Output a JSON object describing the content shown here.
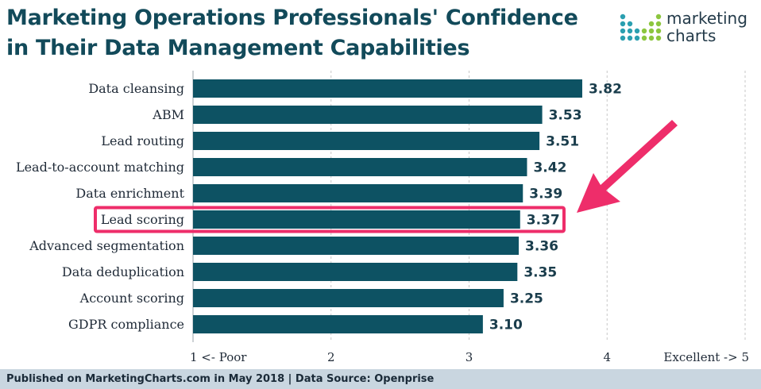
{
  "brand": {
    "name": "marketing\ncharts"
  },
  "colors": {
    "bar": "#0d5263",
    "title": "#124a5a",
    "highlight": "#ee2d6a",
    "grid": "#c7c7c7"
  },
  "footer": {
    "text": "Published on MarketingCharts.com in May 2018 | Data Source: Openprise"
  },
  "chart_data": {
    "type": "bar",
    "orientation": "horizontal",
    "title": "Marketing Operations Professionals' Confidence in Their Data Management Capabilities",
    "categories": [
      "Data cleansing",
      "ABM",
      "Lead routing",
      "Lead-to-account matching",
      "Data enrichment",
      "Lead scoring",
      "Advanced segmentation",
      "Data deduplication",
      "Account scoring",
      "GDPR compliance"
    ],
    "values": [
      3.82,
      3.53,
      3.51,
      3.42,
      3.39,
      3.37,
      3.36,
      3.35,
      3.25,
      3.1
    ],
    "value_labels": [
      "3.82",
      "3.53",
      "3.51",
      "3.42",
      "3.39",
      "3.37",
      "3.36",
      "3.35",
      "3.25",
      "3.10"
    ],
    "xlim": [
      1,
      5
    ],
    "xticks": [
      {
        "value": 1,
        "label": "1  <- Poor",
        "anchor": "start"
      },
      {
        "value": 2,
        "label": "2",
        "anchor": "middle"
      },
      {
        "value": 3,
        "label": "3",
        "anchor": "middle"
      },
      {
        "value": 4,
        "label": "4",
        "anchor": "middle"
      },
      {
        "value": 5,
        "label": "Excellent ->  5",
        "anchor": "end"
      }
    ],
    "grid": true,
    "highlight": "Lead scoring"
  }
}
